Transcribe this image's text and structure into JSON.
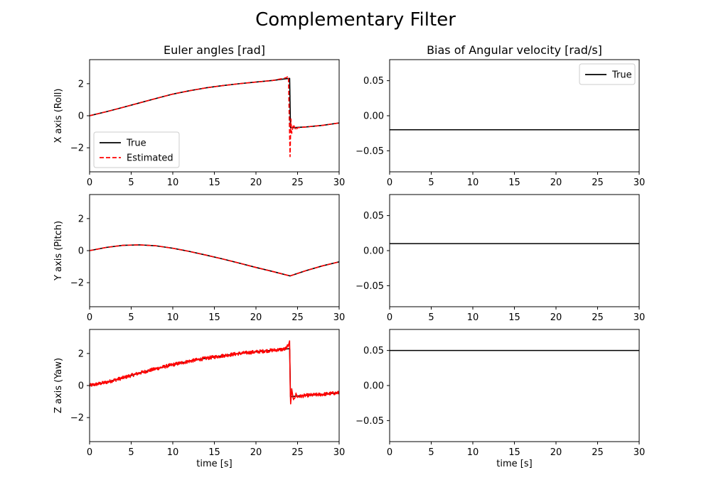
{
  "figure": {
    "title": "Complementary Filter",
    "colors": {
      "true": "#000000",
      "estimated": "#ff0000"
    }
  },
  "chart_data": [
    {
      "type": "line",
      "title": "Euler angles [rad]",
      "ylabel": "X axis (Roll)",
      "xlabel": "",
      "xlim": [
        0,
        30
      ],
      "ylim": [
        -3.5,
        3.5
      ],
      "xticks": [
        "0",
        "5",
        "10",
        "15",
        "20",
        "25",
        "30"
      ],
      "yticks": [
        "2",
        "0",
        "−2"
      ],
      "ytick_values": [
        2,
        0,
        -2
      ],
      "legend": {
        "position": "lower-left",
        "entries": [
          "True",
          "Estimated"
        ]
      },
      "series": [
        {
          "name": "True",
          "style": "solid",
          "x": [
            0,
            2,
            4,
            6,
            8,
            10,
            12,
            14,
            16,
            18,
            20,
            22,
            23.5,
            24.05,
            24.15,
            25,
            26,
            28,
            30
          ],
          "y": [
            0,
            0.25,
            0.52,
            0.8,
            1.08,
            1.35,
            1.56,
            1.74,
            1.88,
            2.0,
            2.1,
            2.2,
            2.3,
            2.33,
            -0.75,
            -0.73,
            -0.7,
            -0.6,
            -0.45
          ]
        },
        {
          "name": "Estimated",
          "style": "dashed",
          "x": [
            0,
            2,
            4,
            6,
            8,
            10,
            12,
            14,
            16,
            18,
            20,
            22,
            23.5,
            23.9,
            24.1,
            24.2,
            24.3,
            24.5,
            24.8,
            25,
            26,
            28,
            30
          ],
          "y": [
            0,
            0.25,
            0.52,
            0.8,
            1.08,
            1.35,
            1.56,
            1.74,
            1.88,
            2.0,
            2.1,
            2.2,
            2.35,
            2.45,
            -2.55,
            -0.2,
            -1.1,
            -0.55,
            -0.9,
            -0.75,
            -0.7,
            -0.6,
            -0.45
          ]
        }
      ]
    },
    {
      "type": "line",
      "title": "Bias of Angular velocity [rad/s]",
      "ylabel": "",
      "xlabel": "",
      "xlim": [
        0,
        30
      ],
      "ylim": [
        -0.08,
        0.08
      ],
      "xticks": [
        "0",
        "5",
        "10",
        "15",
        "20",
        "25",
        "30"
      ],
      "yticks": [
        "0.05",
        "0.00",
        "−0.05"
      ],
      "ytick_values": [
        0.05,
        0,
        -0.05
      ],
      "legend": {
        "position": "upper-right",
        "entries": [
          "True"
        ]
      },
      "series": [
        {
          "name": "True",
          "style": "solid",
          "x": [
            0,
            30
          ],
          "y": [
            -0.02,
            -0.02
          ]
        }
      ]
    },
    {
      "type": "line",
      "title": "",
      "ylabel": "Y axis (Pitch)",
      "xlabel": "",
      "xlim": [
        0,
        30
      ],
      "ylim": [
        -3.5,
        3.5
      ],
      "xticks": [
        "0",
        "5",
        "10",
        "15",
        "20",
        "25",
        "30"
      ],
      "yticks": [
        "2",
        "0",
        "−2"
      ],
      "ytick_values": [
        2,
        0,
        -2
      ],
      "series": [
        {
          "name": "True",
          "style": "solid",
          "x": [
            0,
            2,
            4,
            6,
            8,
            10,
            12,
            14,
            16,
            18,
            20,
            22,
            24.1,
            26,
            28,
            30
          ],
          "y": [
            0,
            0.2,
            0.33,
            0.36,
            0.3,
            0.15,
            -0.05,
            -0.28,
            -0.52,
            -0.78,
            -1.05,
            -1.3,
            -1.58,
            -1.25,
            -0.95,
            -0.7
          ]
        },
        {
          "name": "Estimated",
          "style": "dashed",
          "x": [
            0,
            2,
            4,
            6,
            8,
            10,
            12,
            14,
            16,
            18,
            20,
            22,
            24.1,
            26,
            28,
            30
          ],
          "y": [
            0,
            0.2,
            0.33,
            0.36,
            0.3,
            0.15,
            -0.05,
            -0.28,
            -0.52,
            -0.78,
            -1.05,
            -1.3,
            -1.58,
            -1.25,
            -0.95,
            -0.7
          ]
        }
      ]
    },
    {
      "type": "line",
      "title": "",
      "ylabel": "",
      "xlabel": "",
      "xlim": [
        0,
        30
      ],
      "ylim": [
        -0.08,
        0.08
      ],
      "xticks": [
        "0",
        "5",
        "10",
        "15",
        "20",
        "25",
        "30"
      ],
      "yticks": [
        "0.05",
        "0.00",
        "−0.05"
      ],
      "ytick_values": [
        0.05,
        0,
        -0.05
      ],
      "series": [
        {
          "name": "True",
          "style": "solid",
          "x": [
            0,
            30
          ],
          "y": [
            0.01,
            0.01
          ]
        }
      ]
    },
    {
      "type": "line",
      "title": "",
      "ylabel": "Z axis (Yaw)",
      "xlabel": "time [s]",
      "xlim": [
        0,
        30
      ],
      "ylim": [
        -3.5,
        3.5
      ],
      "xticks": [
        "0",
        "5",
        "10",
        "15",
        "20",
        "25",
        "30"
      ],
      "yticks": [
        "2",
        "0",
        "−2"
      ],
      "ytick_values": [
        2,
        0,
        -2
      ],
      "series": [
        {
          "name": "True",
          "style": "solid",
          "x": [
            0,
            2,
            4,
            6,
            8,
            10,
            12,
            14,
            16,
            18,
            20,
            22,
            23.5,
            24.05,
            24.15,
            25,
            26,
            28,
            30
          ],
          "y": [
            0,
            0.2,
            0.48,
            0.78,
            1.05,
            1.3,
            1.52,
            1.7,
            1.86,
            2.0,
            2.1,
            2.2,
            2.27,
            2.3,
            -0.7,
            -0.65,
            -0.62,
            -0.55,
            -0.45
          ]
        },
        {
          "name": "Estimated",
          "style": "noisy",
          "x": [
            0,
            2,
            4,
            6,
            8,
            10,
            12,
            14,
            16,
            18,
            20,
            22,
            23.5,
            23.9,
            24.05,
            24.15,
            24.3,
            24.5,
            24.8,
            25,
            26,
            28,
            30
          ],
          "y": [
            0,
            0.2,
            0.48,
            0.78,
            1.05,
            1.3,
            1.52,
            1.7,
            1.86,
            2.0,
            2.1,
            2.2,
            2.27,
            2.5,
            2.8,
            -1.3,
            -0.2,
            -0.9,
            -0.55,
            -0.7,
            -0.62,
            -0.55,
            -0.45
          ]
        }
      ]
    },
    {
      "type": "line",
      "title": "",
      "ylabel": "",
      "xlabel": "time [s]",
      "xlim": [
        0,
        30
      ],
      "ylim": [
        -0.08,
        0.08
      ],
      "xticks": [
        "0",
        "5",
        "10",
        "15",
        "20",
        "25",
        "30"
      ],
      "yticks": [
        "0.05",
        "0.00",
        "−0.05"
      ],
      "ytick_values": [
        0.05,
        0,
        -0.05
      ],
      "series": [
        {
          "name": "True",
          "style": "solid",
          "x": [
            0,
            30
          ],
          "y": [
            0.05,
            0.05
          ]
        }
      ]
    }
  ]
}
